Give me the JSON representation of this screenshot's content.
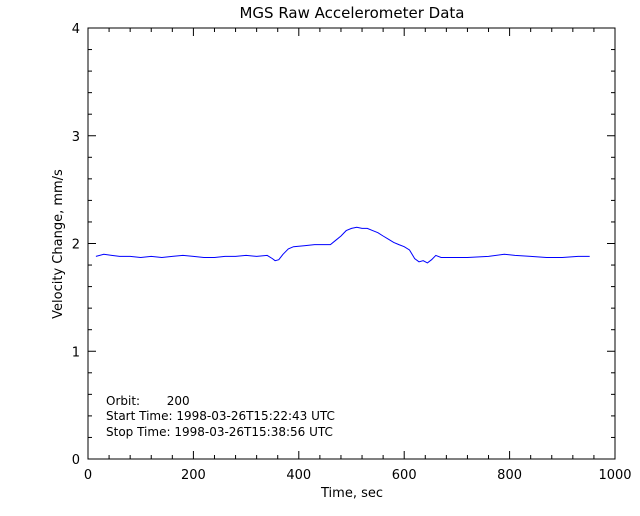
{
  "chart_data": {
    "type": "line",
    "title": "MGS Raw Accelerometer Data",
    "xlabel": "Time, sec",
    "ylabel": "Velocity Change, mm/s",
    "xlim": [
      0,
      1000
    ],
    "ylim": [
      0,
      4
    ],
    "xticks": [
      0,
      200,
      400,
      600,
      800,
      1000
    ],
    "yticks": [
      0,
      1,
      2,
      3,
      4
    ],
    "grid": false,
    "line_color": "#0000ff",
    "annotations": [
      "Orbit:       200",
      "Start Time: 1998-03-26T15:22:43 UTC",
      "Stop Time: 1998-03-26T15:38:56 UTC"
    ],
    "series": [
      {
        "x": [
          15,
          30,
          45,
          60,
          80,
          100,
          120,
          140,
          160,
          180,
          200,
          220,
          240,
          260,
          280,
          300,
          320,
          340,
          350,
          355,
          362,
          370,
          380,
          390,
          410,
          430,
          450,
          460,
          470,
          480,
          490,
          500,
          510,
          520,
          530,
          540,
          550,
          560,
          570,
          580,
          590,
          600,
          610,
          620,
          628,
          636,
          644,
          652,
          660,
          670,
          690,
          720,
          760,
          790,
          810,
          840,
          870,
          900,
          930,
          952
        ],
        "y": [
          1.88,
          1.9,
          1.89,
          1.88,
          1.88,
          1.87,
          1.88,
          1.87,
          1.88,
          1.89,
          1.88,
          1.87,
          1.87,
          1.88,
          1.88,
          1.89,
          1.88,
          1.89,
          1.86,
          1.84,
          1.85,
          1.9,
          1.95,
          1.97,
          1.98,
          1.99,
          1.99,
          1.99,
          2.03,
          2.07,
          2.12,
          2.14,
          2.15,
          2.14,
          2.14,
          2.12,
          2.1,
          2.07,
          2.04,
          2.01,
          1.99,
          1.97,
          1.94,
          1.86,
          1.83,
          1.84,
          1.82,
          1.85,
          1.89,
          1.87,
          1.87,
          1.87,
          1.88,
          1.9,
          1.89,
          1.88,
          1.87,
          1.87,
          1.88,
          1.88
        ]
      }
    ]
  }
}
